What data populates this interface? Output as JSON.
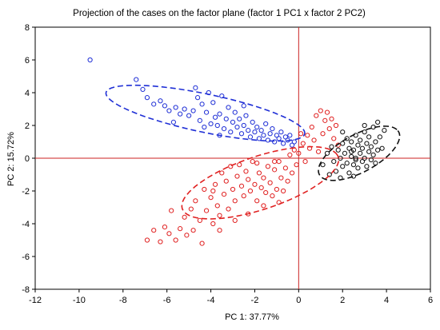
{
  "chart_data": {
    "type": "scatter",
    "title": "Projection of the cases on the factor plane (factor 1 PC1 x factor 2 PC2)",
    "xlabel": "PC 1: 37.77%",
    "ylabel": "PC 2: 15.72%",
    "xlim": [
      -12,
      6
    ],
    "ylim": [
      -8,
      8
    ],
    "x_ticks": [
      "-12",
      "-10",
      "-8",
      "-6",
      "-4",
      "-2",
      "0",
      "2",
      "4",
      "6"
    ],
    "y_ticks": [
      "-8",
      "-6",
      "-4",
      "-2",
      "0",
      "2",
      "4",
      "6",
      "8"
    ],
    "x_tick_values": [
      -12,
      -10,
      -8,
      -6,
      -4,
      -2,
      0,
      2,
      4,
      6
    ],
    "y_tick_values": [
      -8,
      -6,
      -4,
      -2,
      0,
      2,
      4,
      6,
      8
    ],
    "grid": false,
    "reference_lines": {
      "x": 0,
      "y": 0,
      "color": "#cc2222"
    },
    "colors": {
      "blue": "#1f2fd6",
      "red": "#e02020",
      "black": "#111111"
    },
    "series": [
      {
        "color": "blue",
        "points": [
          [
            -9.5,
            6.0
          ],
          [
            -7.4,
            4.8
          ],
          [
            -7.1,
            4.2
          ],
          [
            -6.9,
            3.7
          ],
          [
            -6.6,
            3.3
          ],
          [
            -6.3,
            3.5
          ],
          [
            -6.1,
            3.2
          ],
          [
            -5.9,
            2.9
          ],
          [
            -5.6,
            3.1
          ],
          [
            -5.4,
            2.7
          ],
          [
            -5.2,
            3.0
          ],
          [
            -5.0,
            2.6
          ],
          [
            -4.8,
            2.9
          ],
          [
            -4.7,
            4.3
          ],
          [
            -4.6,
            3.7
          ],
          [
            -4.5,
            2.3
          ],
          [
            -4.4,
            3.3
          ],
          [
            -4.2,
            2.8
          ],
          [
            -4.1,
            4.0
          ],
          [
            -4.0,
            2.1
          ],
          [
            -3.9,
            3.4
          ],
          [
            -3.8,
            2.5
          ],
          [
            -3.7,
            2.0
          ],
          [
            -3.6,
            2.7
          ],
          [
            -3.5,
            3.8
          ],
          [
            -3.4,
            1.8
          ],
          [
            -3.3,
            2.4
          ],
          [
            -3.2,
            3.1
          ],
          [
            -3.1,
            1.6
          ],
          [
            -3.0,
            2.2
          ],
          [
            -2.9,
            2.8
          ],
          [
            -2.8,
            1.9
          ],
          [
            -2.7,
            2.4
          ],
          [
            -2.6,
            1.5
          ],
          [
            -2.5,
            2.0
          ],
          [
            -2.4,
            2.6
          ],
          [
            -2.3,
            1.7
          ],
          [
            -2.2,
            1.3
          ],
          [
            -2.1,
            2.2
          ],
          [
            -2.0,
            1.6
          ],
          [
            -1.9,
            1.9
          ],
          [
            -1.8,
            1.2
          ],
          [
            -1.7,
            1.7
          ],
          [
            -1.6,
            1.4
          ],
          [
            -1.5,
            2.1
          ],
          [
            -1.4,
            1.1
          ],
          [
            -1.3,
            1.5
          ],
          [
            -1.2,
            1.8
          ],
          [
            -1.1,
            1.0
          ],
          [
            -1.0,
            1.4
          ],
          [
            -0.9,
            1.2
          ],
          [
            -0.8,
            1.6
          ],
          [
            -0.7,
            0.9
          ],
          [
            -0.6,
            1.3
          ],
          [
            -0.5,
            1.1
          ],
          [
            -0.4,
            1.4
          ],
          [
            -0.3,
            0.8
          ],
          [
            -0.2,
            1.0
          ],
          [
            -4.3,
            1.9
          ],
          [
            -3.6,
            1.4
          ],
          [
            -5.7,
            2.2
          ],
          [
            -2.5,
            3.2
          ]
        ]
      },
      {
        "color": "red",
        "points": [
          [
            -6.9,
            -5.0
          ],
          [
            -6.6,
            -4.4
          ],
          [
            -6.3,
            -5.1
          ],
          [
            -6.1,
            -4.2
          ],
          [
            -5.9,
            -4.6
          ],
          [
            -5.6,
            -5.0
          ],
          [
            -5.4,
            -4.3
          ],
          [
            -5.2,
            -3.6
          ],
          [
            -5.1,
            -4.7
          ],
          [
            -4.9,
            -3.1
          ],
          [
            -4.8,
            -4.4
          ],
          [
            -4.7,
            -2.6
          ],
          [
            -4.5,
            -3.8
          ],
          [
            -4.4,
            -5.2
          ],
          [
            -4.3,
            -1.9
          ],
          [
            -4.2,
            -3.2
          ],
          [
            -4.0,
            -2.4
          ],
          [
            -3.9,
            -4.0
          ],
          [
            -3.8,
            -1.6
          ],
          [
            -3.7,
            -2.9
          ],
          [
            -3.6,
            -3.5
          ],
          [
            -3.5,
            -0.9
          ],
          [
            -3.4,
            -2.2
          ],
          [
            -3.3,
            -1.4
          ],
          [
            -3.2,
            -3.1
          ],
          [
            -3.1,
            -0.5
          ],
          [
            -3.0,
            -1.9
          ],
          [
            -2.9,
            -2.6
          ],
          [
            -2.8,
            -1.1
          ],
          [
            -2.7,
            -0.4
          ],
          [
            -2.6,
            -1.7
          ],
          [
            -2.5,
            -2.3
          ],
          [
            -2.4,
            -0.8
          ],
          [
            -2.3,
            -1.3
          ],
          [
            -2.2,
            -2.0
          ],
          [
            -2.1,
            -0.2
          ],
          [
            -2.0,
            -1.6
          ],
          [
            -1.9,
            -2.6
          ],
          [
            -1.8,
            -0.9
          ],
          [
            -1.7,
            -1.8
          ],
          [
            -1.6,
            -1.2
          ],
          [
            -1.5,
            -2.1
          ],
          [
            -1.4,
            -0.5
          ],
          [
            -1.3,
            -1.5
          ],
          [
            -1.2,
            -2.3
          ],
          [
            -1.1,
            -0.7
          ],
          [
            -1.0,
            -1.9
          ],
          [
            -0.9,
            -0.2
          ],
          [
            -0.8,
            -1.2
          ],
          [
            -0.7,
            -2.0
          ],
          [
            -0.6,
            -0.6
          ],
          [
            -0.5,
            -1.4
          ],
          [
            -0.4,
            0.2
          ],
          [
            -0.3,
            -0.9
          ],
          [
            -0.2,
            0.5
          ],
          [
            -0.1,
            -0.4
          ],
          [
            0.0,
            0.3
          ],
          [
            0.2,
            0.9
          ],
          [
            0.3,
            -0.2
          ],
          [
            0.4,
            1.4
          ],
          [
            0.5,
            0.6
          ],
          [
            0.6,
            1.9
          ],
          [
            0.7,
            1.1
          ],
          [
            0.8,
            2.6
          ],
          [
            0.9,
            0.4
          ],
          [
            1.0,
            2.9
          ],
          [
            1.1,
            1.5
          ],
          [
            1.2,
            2.3
          ],
          [
            1.3,
            2.8
          ],
          [
            1.4,
            1.8
          ],
          [
            1.5,
            2.4
          ],
          [
            1.6,
            1.2
          ],
          [
            1.7,
            2.0
          ],
          [
            1.8,
            0.8
          ],
          [
            -2.3,
            -3.4
          ],
          [
            -1.6,
            -2.9
          ],
          [
            -3.9,
            -2.0
          ],
          [
            -2.9,
            -3.8
          ],
          [
            -5.8,
            -3.2
          ],
          [
            -1.9,
            -0.3
          ],
          [
            -1.1,
            -0.2
          ],
          [
            -3.6,
            -4.4
          ],
          [
            -0.9,
            -2.7
          ],
          [
            0.1,
            1.5
          ]
        ]
      },
      {
        "color": "black",
        "points": [
          [
            1.1,
            -0.4
          ],
          [
            1.3,
            0.3
          ],
          [
            1.4,
            -1.0
          ],
          [
            1.5,
            0.7
          ],
          [
            1.6,
            -0.2
          ],
          [
            1.7,
            -0.8
          ],
          [
            1.8,
            0.5
          ],
          [
            1.9,
            0.0
          ],
          [
            2.0,
            0.9
          ],
          [
            2.0,
            -0.5
          ],
          [
            2.1,
            0.3
          ],
          [
            2.2,
            1.2
          ],
          [
            2.2,
            -0.3
          ],
          [
            2.3,
            0.6
          ],
          [
            2.3,
            -0.9
          ],
          [
            2.4,
            0.1
          ],
          [
            2.4,
            1.0
          ],
          [
            2.5,
            -0.4
          ],
          [
            2.5,
            0.5
          ],
          [
            2.6,
            1.4
          ],
          [
            2.6,
            -0.1
          ],
          [
            2.7,
            0.8
          ],
          [
            2.7,
            -0.6
          ],
          [
            2.8,
            0.3
          ],
          [
            2.8,
            1.1
          ],
          [
            2.9,
            -0.2
          ],
          [
            2.9,
            0.6
          ],
          [
            3.0,
            1.6
          ],
          [
            3.0,
            0.0
          ],
          [
            3.1,
            0.9
          ],
          [
            3.1,
            -0.5
          ],
          [
            3.2,
            0.4
          ],
          [
            3.2,
            1.3
          ],
          [
            3.3,
            -0.1
          ],
          [
            3.3,
            0.7
          ],
          [
            3.4,
            1.9
          ],
          [
            3.4,
            0.2
          ],
          [
            3.5,
            1.0
          ],
          [
            3.5,
            -0.3
          ],
          [
            3.6,
            0.5
          ],
          [
            3.6,
            2.2
          ],
          [
            3.7,
            1.3
          ],
          [
            3.8,
            0.6
          ],
          [
            3.9,
            1.7
          ],
          [
            2.0,
            1.6
          ],
          [
            2.5,
            -1.1
          ],
          [
            1.9,
            -1.2
          ],
          [
            3.0,
            2.0
          ],
          [
            2.6,
            0.0
          ],
          [
            2.4,
            0.4
          ]
        ]
      }
    ],
    "ellipses": [
      {
        "color": "blue",
        "cx": -4.25,
        "cy": 2.75,
        "rx": 4.7,
        "ry": 1.15,
        "angle_deg": -16
      },
      {
        "color": "red",
        "cx": -1.75,
        "cy": -1.5,
        "rx": 3.9,
        "ry": 1.55,
        "angle_deg": 26
      },
      {
        "color": "black",
        "cx": 2.75,
        "cy": 0.3,
        "rx": 2.25,
        "ry": 1.05,
        "angle_deg": 40
      }
    ]
  }
}
